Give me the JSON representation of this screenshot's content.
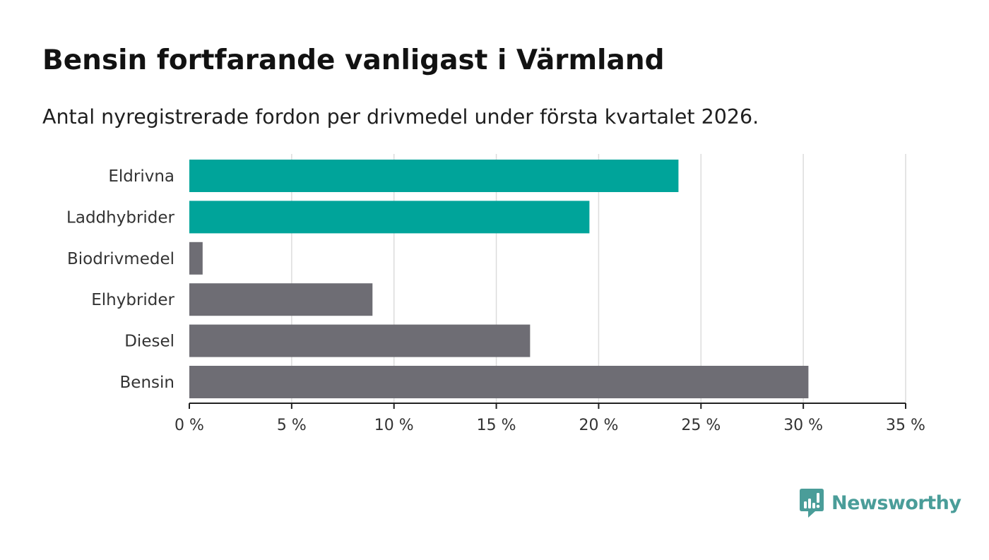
{
  "header": {
    "title": "Bensin fortfarande vanligast i Värmland",
    "subtitle": "Antal nyregistrerade fordon per drivmedel under första kvartalet 2026."
  },
  "branding": {
    "name": "Newsworthy",
    "icon": "newsworthy-logo-icon",
    "color": "#4a9d99"
  },
  "colors": {
    "highlight": "#00a49a",
    "neutral": "#6e6d74",
    "grid": "#dcdcdc",
    "axis": "#222222"
  },
  "chart_data": {
    "type": "bar",
    "orientation": "horizontal",
    "title": "Bensin fortfarande vanligast i Värmland",
    "subtitle": "Antal nyregistrerade fordon per drivmedel under första kvartalet 2026.",
    "xlabel": "",
    "ylabel": "",
    "categories": [
      "Eldrivna",
      "Laddhybrider",
      "Biodrivmedel",
      "Elhybrider",
      "Diesel",
      "Bensin"
    ],
    "values": [
      23.9,
      19.55,
      0.65,
      8.95,
      16.65,
      30.25
    ],
    "highlighted": [
      true,
      true,
      false,
      false,
      false,
      false
    ],
    "unit": "%",
    "xlim": [
      0,
      35
    ],
    "ticks": [
      0,
      5,
      10,
      15,
      20,
      25,
      30,
      35
    ],
    "tick_labels": [
      "0 %",
      "5 %",
      "10 %",
      "15 %",
      "20 %",
      "25 %",
      "30 %",
      "35 %"
    ],
    "grid": true,
    "legend": "none"
  }
}
